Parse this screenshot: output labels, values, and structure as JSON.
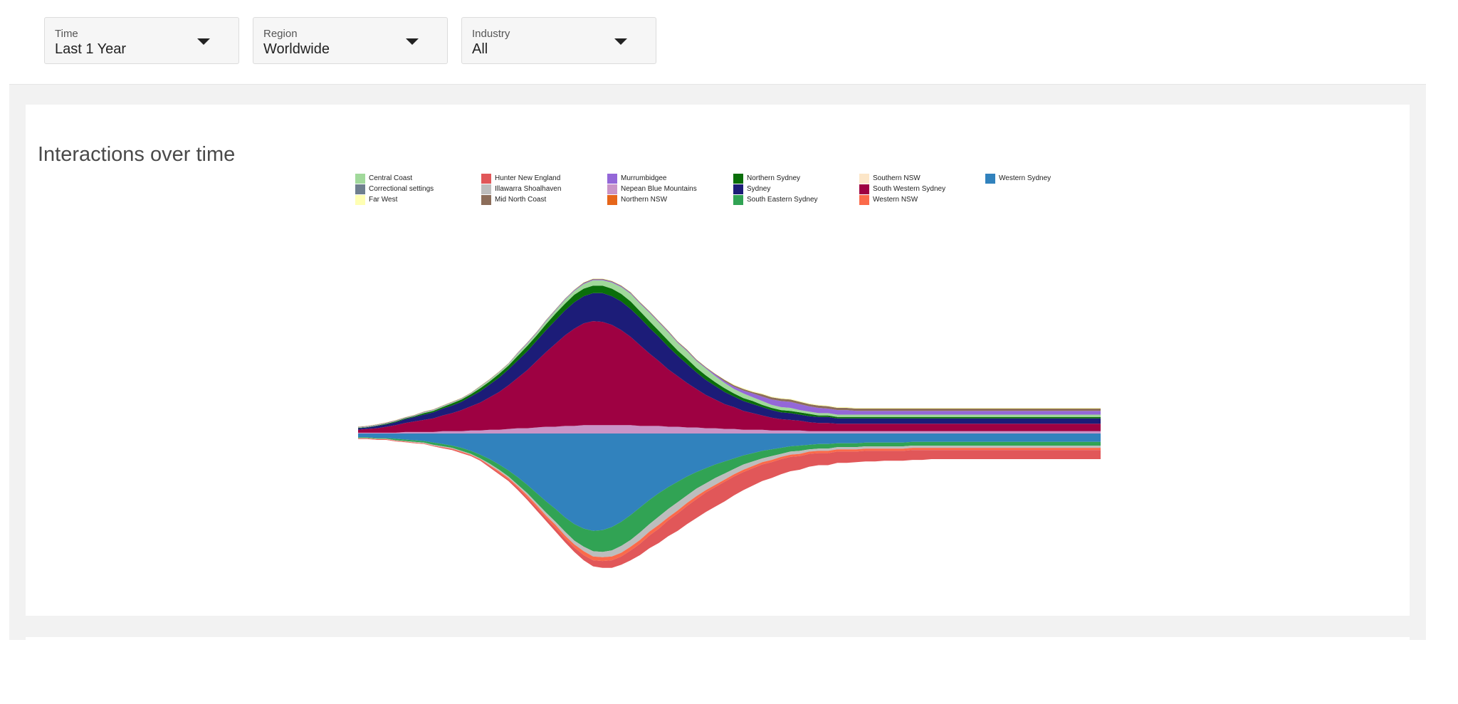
{
  "filters": [
    {
      "label": "Time",
      "value": "Last 1 Year"
    },
    {
      "label": "Region",
      "value": "Worldwide"
    },
    {
      "label": "Industry",
      "value": "All"
    }
  ],
  "card": {
    "title": "Interactions over time"
  },
  "icons": {
    "dropdown": "chevron-down-icon"
  },
  "chart_data": {
    "type": "area",
    "subtype": "streamgraph",
    "title": "",
    "xlabel": "",
    "ylabel": "",
    "grid": false,
    "legend_position": "top",
    "x_count": 80,
    "series": [
      {
        "name": "Western Sydney",
        "color": "#3182bd",
        "values": [
          0.5,
          0.5,
          0.6,
          0.6,
          0.7,
          0.8,
          0.9,
          1,
          1.2,
          1.4,
          1.6,
          1.9,
          2.3,
          2.8,
          3.4,
          4.1,
          4.9,
          5.8,
          6.8,
          7.9,
          9,
          10,
          11.1,
          12,
          12.6,
          12.9,
          12.8,
          12.4,
          11.7,
          10.8,
          9.8,
          8.8,
          7.9,
          7.1,
          6.4,
          5.7,
          5.1,
          4.6,
          4.1,
          3.7,
          3.3,
          2.9,
          2.6,
          2.3,
          2.1,
          1.9,
          1.7,
          1.6,
          1.5,
          1.4,
          1.4,
          1.3,
          1.3,
          1.3,
          1.2,
          1.2,
          1.2,
          1.2,
          1.2,
          1.1,
          1.1,
          1.1,
          1.1,
          1.1,
          1.1,
          1.1,
          1.1,
          1.1,
          1.1,
          1.1,
          1.1,
          1.1,
          1.1,
          1.1,
          1.1,
          1.1,
          1.1,
          1.1,
          1.1,
          1.1
        ]
      },
      {
        "name": "South Eastern Sydney",
        "color": "#31a354",
        "values": [
          0.1,
          0.1,
          0.1,
          0.1,
          0.2,
          0.2,
          0.2,
          0.2,
          0.3,
          0.3,
          0.3,
          0.4,
          0.4,
          0.5,
          0.6,
          0.7,
          0.8,
          1,
          1.1,
          1.3,
          1.5,
          1.7,
          1.9,
          2.2,
          2.4,
          2.7,
          2.9,
          3.1,
          3.2,
          3.3,
          3.3,
          3.2,
          3.1,
          2.9,
          2.7,
          2.5,
          2.2,
          2,
          1.8,
          1.6,
          1.4,
          1.2,
          1.1,
          1,
          0.9,
          0.8,
          0.7,
          0.7,
          0.6,
          0.6,
          0.6,
          0.5,
          0.5,
          0.5,
          0.5,
          0.5,
          0.5,
          0.5,
          0.5,
          0.5,
          0.5,
          0.5,
          0.5,
          0.5,
          0.5,
          0.5,
          0.5,
          0.5,
          0.5,
          0.5,
          0.5,
          0.5,
          0.5,
          0.5,
          0.5,
          0.5,
          0.5,
          0.5,
          0.5,
          0.5
        ]
      },
      {
        "name": "Illawarra Shoalhaven",
        "color": "#bdbdbd",
        "values": [
          0.05,
          0.05,
          0.05,
          0.05,
          0.05,
          0.05,
          0.1,
          0.1,
          0.1,
          0.1,
          0.1,
          0.1,
          0.1,
          0.1,
          0.2,
          0.2,
          0.2,
          0.2,
          0.3,
          0.3,
          0.4,
          0.4,
          0.5,
          0.5,
          0.6,
          0.7,
          0.7,
          0.8,
          0.9,
          0.9,
          1,
          1,
          1.1,
          1.1,
          1.1,
          1,
          1,
          0.9,
          0.9,
          0.8,
          0.7,
          0.7,
          0.6,
          0.5,
          0.5,
          0.4,
          0.4,
          0.4,
          0.3,
          0.3,
          0.3,
          0.3,
          0.3,
          0.3,
          0.3,
          0.3,
          0.3,
          0.3,
          0.3,
          0.3,
          0.3,
          0.3,
          0.3,
          0.3,
          0.3,
          0.3,
          0.3,
          0.3,
          0.3,
          0.3,
          0.3,
          0.3,
          0.3,
          0.3,
          0.3,
          0.3,
          0.3,
          0.3,
          0.3,
          0.3
        ]
      },
      {
        "name": "Western NSW",
        "color": "#fb6a4a",
        "values": [
          0.05,
          0.05,
          0.05,
          0.05,
          0.05,
          0.05,
          0.05,
          0.05,
          0.05,
          0.05,
          0.1,
          0.1,
          0.1,
          0.1,
          0.1,
          0.2,
          0.2,
          0.2,
          0.3,
          0.3,
          0.3,
          0.4,
          0.4,
          0.4,
          0.5,
          0.5,
          0.5,
          0.5,
          0.5,
          0.5,
          0.5,
          0.5,
          0.5,
          0.4,
          0.4,
          0.4,
          0.4,
          0.3,
          0.3,
          0.3,
          0.3,
          0.3,
          0.3,
          0.3,
          0.3,
          0.3,
          0.3,
          0.3,
          0.3,
          0.3,
          0.3,
          0.3,
          0.3,
          0.3,
          0.3,
          0.3,
          0.3,
          0.3,
          0.3,
          0.3,
          0.3,
          0.3,
          0.3,
          0.3,
          0.3,
          0.3,
          0.3,
          0.3,
          0.3,
          0.3,
          0.3,
          0.3,
          0.3,
          0.3,
          0.3,
          0.3,
          0.3,
          0.3,
          0.3,
          0.3
        ]
      },
      {
        "name": "Hunter New England",
        "color": "#e15759",
        "values": [
          0.05,
          0.05,
          0.05,
          0.05,
          0.05,
          0.05,
          0.05,
          0.05,
          0.05,
          0.1,
          0.1,
          0.1,
          0.1,
          0.1,
          0.2,
          0.2,
          0.2,
          0.3,
          0.3,
          0.4,
          0.4,
          0.5,
          0.5,
          0.6,
          0.7,
          0.8,
          0.9,
          1,
          1.1,
          1.3,
          1.5,
          1.7,
          1.9,
          2.1,
          2.3,
          2.4,
          2.5,
          2.6,
          2.6,
          2.6,
          2.5,
          2.4,
          2.3,
          2.2,
          2.1,
          2,
          1.9,
          1.8,
          1.7,
          1.6,
          1.6,
          1.5,
          1.5,
          1.4,
          1.4,
          1.4,
          1.3,
          1.3,
          1.3,
          1.3,
          1.3,
          1.2,
          1.2,
          1.2,
          1.2,
          1.2,
          1.2,
          1.2,
          1.2,
          1.2,
          1.2,
          1.2,
          1.2,
          1.2,
          1.2,
          1.2,
          1.2,
          1.2,
          1.2,
          1.2
        ]
      },
      {
        "name": "Nepean Blue Mountains",
        "color": "#c994c7",
        "values": [
          0.1,
          0.1,
          0.1,
          0.1,
          0.1,
          0.2,
          0.2,
          0.2,
          0.2,
          0.3,
          0.3,
          0.3,
          0.4,
          0.4,
          0.5,
          0.5,
          0.6,
          0.7,
          0.7,
          0.8,
          0.9,
          0.9,
          1,
          1,
          1.1,
          1.1,
          1.1,
          1.1,
          1.1,
          1.1,
          1,
          1,
          1,
          0.9,
          0.9,
          0.8,
          0.8,
          0.7,
          0.7,
          0.6,
          0.6,
          0.5,
          0.5,
          0.5,
          0.4,
          0.4,
          0.4,
          0.4,
          0.3,
          0.3,
          0.3,
          0.3,
          0.3,
          0.3,
          0.3,
          0.3,
          0.3,
          0.3,
          0.3,
          0.3,
          0.3,
          0.3,
          0.3,
          0.3,
          0.3,
          0.3,
          0.3,
          0.3,
          0.3,
          0.3,
          0.3,
          0.3,
          0.3,
          0.3,
          0.3,
          0.3,
          0.3,
          0.3,
          0.3,
          0.3
        ]
      },
      {
        "name": "South Western Sydney",
        "color": "#9e0142",
        "values": [
          0.4,
          0.5,
          0.6,
          0.8,
          1,
          1.2,
          1.4,
          1.6,
          1.8,
          2.1,
          2.4,
          2.8,
          3.2,
          3.7,
          4.3,
          5,
          5.8,
          6.7,
          7.7,
          8.8,
          9.9,
          11,
          12,
          12.9,
          13.5,
          13.8,
          13.7,
          13.3,
          12.6,
          11.7,
          10.7,
          9.6,
          8.6,
          7.6,
          6.7,
          5.9,
          5.1,
          4.4,
          3.8,
          3.3,
          2.9,
          2.5,
          2.2,
          1.9,
          1.7,
          1.5,
          1.4,
          1.3,
          1.2,
          1.1,
          1.1,
          1,
          1,
          1,
          1,
          1,
          1,
          1,
          1,
          1,
          1,
          1,
          1,
          1,
          1,
          1,
          1,
          1,
          1,
          1,
          1,
          1,
          1,
          1,
          1,
          1,
          1,
          1,
          1,
          1
        ]
      },
      {
        "name": "Sydney",
        "color": "#1c1c78",
        "values": [
          0.2,
          0.2,
          0.3,
          0.3,
          0.4,
          0.5,
          0.6,
          0.7,
          0.8,
          0.9,
          1,
          1.1,
          1.3,
          1.5,
          1.7,
          1.9,
          2.1,
          2.3,
          2.5,
          2.7,
          2.9,
          3.1,
          3.3,
          3.5,
          3.6,
          3.7,
          3.8,
          3.8,
          3.8,
          3.7,
          3.6,
          3.4,
          3.2,
          3,
          2.7,
          2.5,
          2.2,
          2,
          1.8,
          1.6,
          1.4,
          1.3,
          1.2,
          1.1,
          1,
          0.9,
          0.9,
          0.8,
          0.8,
          0.8,
          0.8,
          0.7,
          0.7,
          0.7,
          0.7,
          0.7,
          0.7,
          0.7,
          0.7,
          0.7,
          0.7,
          0.7,
          0.7,
          0.7,
          0.7,
          0.7,
          0.7,
          0.7,
          0.7,
          0.7,
          0.7,
          0.7,
          0.7,
          0.7,
          0.7,
          0.7,
          0.7,
          0.7,
          0.7,
          0.7
        ]
      },
      {
        "name": "Northern Sydney",
        "color": "#0a6e0a",
        "values": [
          0.05,
          0.05,
          0.05,
          0.1,
          0.1,
          0.1,
          0.1,
          0.2,
          0.2,
          0.2,
          0.3,
          0.3,
          0.3,
          0.4,
          0.4,
          0.5,
          0.5,
          0.6,
          0.7,
          0.7,
          0.8,
          0.9,
          0.9,
          1,
          1,
          1,
          1,
          1,
          1,
          1,
          0.9,
          0.9,
          0.8,
          0.8,
          0.7,
          0.7,
          0.6,
          0.6,
          0.5,
          0.5,
          0.4,
          0.4,
          0.4,
          0.3,
          0.3,
          0.3,
          0.3,
          0.3,
          0.3,
          0.2,
          0.2,
          0.2,
          0.2,
          0.2,
          0.2,
          0.2,
          0.2,
          0.2,
          0.2,
          0.2,
          0.2,
          0.2,
          0.2,
          0.2,
          0.2,
          0.2,
          0.2,
          0.2,
          0.2,
          0.2,
          0.2,
          0.2,
          0.2,
          0.2,
          0.2,
          0.2,
          0.2,
          0.2,
          0.2,
          0.2
        ]
      },
      {
        "name": "Central Coast",
        "color": "#a1d99b",
        "values": [
          0.05,
          0.05,
          0.05,
          0.05,
          0.05,
          0.05,
          0.05,
          0.1,
          0.1,
          0.1,
          0.1,
          0.1,
          0.1,
          0.2,
          0.2,
          0.2,
          0.2,
          0.3,
          0.3,
          0.3,
          0.4,
          0.4,
          0.5,
          0.5,
          0.6,
          0.7,
          0.7,
          0.8,
          0.9,
          1,
          1,
          1.1,
          1.1,
          1.1,
          1,
          1,
          0.9,
          0.9,
          0.8,
          0.7,
          0.6,
          0.6,
          0.5,
          0.5,
          0.4,
          0.4,
          0.4,
          0.3,
          0.3,
          0.3,
          0.3,
          0.3,
          0.3,
          0.3,
          0.3,
          0.3,
          0.3,
          0.3,
          0.3,
          0.3,
          0.3,
          0.3,
          0.3,
          0.3,
          0.3,
          0.3,
          0.3,
          0.3,
          0.3,
          0.3,
          0.3,
          0.3,
          0.3,
          0.3,
          0.3,
          0.3,
          0.3,
          0.3,
          0.3,
          0.3
        ]
      },
      {
        "name": "Murrumbidgee",
        "color": "#9467d8",
        "values": [
          0.05,
          0.05,
          0.05,
          0.05,
          0.05,
          0.05,
          0.05,
          0.05,
          0.05,
          0.05,
          0.05,
          0.05,
          0.05,
          0.05,
          0.05,
          0.05,
          0.05,
          0.1,
          0.1,
          0.1,
          0.1,
          0.1,
          0.1,
          0.1,
          0.1,
          0.1,
          0.1,
          0.1,
          0.1,
          0.1,
          0.1,
          0.1,
          0.1,
          0.1,
          0.1,
          0.1,
          0.1,
          0.1,
          0.2,
          0.2,
          0.3,
          0.4,
          0.5,
          0.6,
          0.7,
          0.8,
          0.8,
          0.8,
          0.7,
          0.7,
          0.6,
          0.6,
          0.6,
          0.5,
          0.5,
          0.5,
          0.5,
          0.5,
          0.5,
          0.5,
          0.5,
          0.5,
          0.5,
          0.5,
          0.5,
          0.5,
          0.5,
          0.5,
          0.5,
          0.5,
          0.5,
          0.5,
          0.5,
          0.5,
          0.5,
          0.5,
          0.5,
          0.5,
          0.5,
          0.5
        ]
      },
      {
        "name": "Mid North Coast",
        "color": "#8c6d5a",
        "values": [
          0.05,
          0.05,
          0.05,
          0.05,
          0.05,
          0.05,
          0.05,
          0.05,
          0.05,
          0.05,
          0.05,
          0.05,
          0.05,
          0.05,
          0.05,
          0.05,
          0.05,
          0.05,
          0.05,
          0.05,
          0.05,
          0.05,
          0.05,
          0.05,
          0.1,
          0.1,
          0.1,
          0.1,
          0.1,
          0.1,
          0.1,
          0.1,
          0.1,
          0.1,
          0.1,
          0.1,
          0.1,
          0.1,
          0.1,
          0.2,
          0.2,
          0.2,
          0.2,
          0.3,
          0.3,
          0.3,
          0.3,
          0.3,
          0.3,
          0.3,
          0.3,
          0.3,
          0.3,
          0.3,
          0.3,
          0.3,
          0.3,
          0.3,
          0.3,
          0.3,
          0.3,
          0.3,
          0.3,
          0.3,
          0.3,
          0.3,
          0.3,
          0.3,
          0.3,
          0.3,
          0.3,
          0.3,
          0.3,
          0.3,
          0.3,
          0.3,
          0.3,
          0.3,
          0.3,
          0.3
        ]
      },
      {
        "name": "Far West",
        "color": "#ffffb3",
        "values": [
          0.05,
          0.05,
          0.05,
          0.05,
          0.05,
          0.05,
          0.05,
          0.05,
          0.05,
          0.05,
          0.05,
          0.05,
          0.05,
          0.05,
          0.05,
          0.05,
          0.05,
          0.05,
          0.05,
          0.05,
          0.05,
          0.05,
          0.05,
          0.05,
          0.05,
          0.05,
          0.05,
          0.05,
          0.05,
          0.05,
          0.05,
          0.05,
          0.05,
          0.05,
          0.05,
          0.05,
          0.05,
          0.05,
          0.05,
          0.05,
          0.1,
          0.1,
          0.1,
          0.1,
          0.1,
          0.1,
          0.1,
          0.1,
          0.1,
          0.1,
          0.1,
          0.1,
          0.1,
          0.1,
          0.1,
          0.1,
          0.1,
          0.1,
          0.1,
          0.1,
          0.1,
          0.1,
          0.1,
          0.1,
          0.1,
          0.1,
          0.1,
          0.1,
          0.1,
          0.1,
          0.1,
          0.1,
          0.1,
          0.1,
          0.1,
          0.1,
          0.1,
          0.1,
          0.1,
          0.1
        ]
      }
    ],
    "legend": [
      {
        "name": "Central Coast",
        "color": "#a1d99b"
      },
      {
        "name": "Correctional settings",
        "color": "#6f7f8f"
      },
      {
        "name": "Far West",
        "color": "#ffffb3"
      },
      {
        "name": "Hunter New England",
        "color": "#e15759"
      },
      {
        "name": "Illawarra Shoalhaven",
        "color": "#bdbdbd"
      },
      {
        "name": "Mid North Coast",
        "color": "#8c6d5a"
      },
      {
        "name": "Murrumbidgee",
        "color": "#9467d8"
      },
      {
        "name": "Nepean Blue Mountains",
        "color": "#c994c7"
      },
      {
        "name": "Northern NSW",
        "color": "#e6661a"
      },
      {
        "name": "Northern Sydney",
        "color": "#0a6e0a"
      },
      {
        "name": "Sydney",
        "color": "#1c1c78"
      },
      {
        "name": "South Eastern Sydney",
        "color": "#31a354"
      },
      {
        "name": "Southern NSW",
        "color": "#fce6c8"
      },
      {
        "name": "South Western Sydney",
        "color": "#9e0142"
      },
      {
        "name": "Western NSW",
        "color": "#fb6a4a"
      },
      {
        "name": "Western Sydney",
        "color": "#3182bd"
      }
    ]
  }
}
